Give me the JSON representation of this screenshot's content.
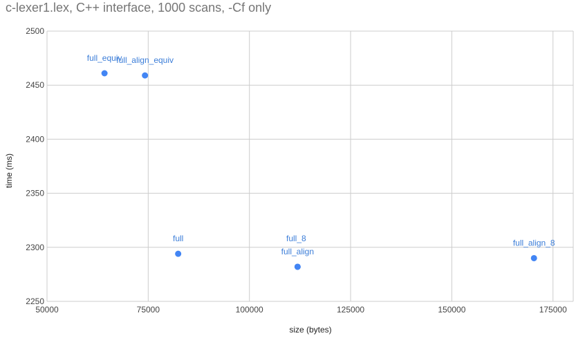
{
  "chart_data": {
    "type": "scatter",
    "title": "c-lexer1.lex, C++ interface, 1000 scans, -Cf only",
    "xlabel": "size (bytes)",
    "ylabel": "time (ms)",
    "xlim": [
      50000,
      180000
    ],
    "ylim": [
      2250,
      2500
    ],
    "x_ticks": [
      50000,
      75000,
      100000,
      125000,
      150000,
      175000
    ],
    "y_ticks": [
      2250,
      2300,
      2350,
      2400,
      2450,
      2500
    ],
    "x_tick_labels": [
      "50000",
      "75000",
      "100000",
      "125000",
      "150000",
      "175000"
    ],
    "y_tick_labels": [
      "2250",
      "2300",
      "2350",
      "2400",
      "2450",
      "2500"
    ],
    "grid": true,
    "legend": "none",
    "marker_color": "#4285f4",
    "label_color": "#3b7dd8",
    "points": [
      {
        "label": "full_equiv",
        "x": 64200,
        "y": 2461
      },
      {
        "label": "full_align_equiv",
        "x": 74200,
        "y": 2459
      },
      {
        "label": "full",
        "x": 82400,
        "y": 2294
      },
      {
        "label": "full_8",
        "x": 111900,
        "y": 2282
      },
      {
        "label": "full_align",
        "x": 111900,
        "y": 2282
      },
      {
        "label": "full_align_8",
        "x": 170300,
        "y": 2290
      }
    ]
  }
}
